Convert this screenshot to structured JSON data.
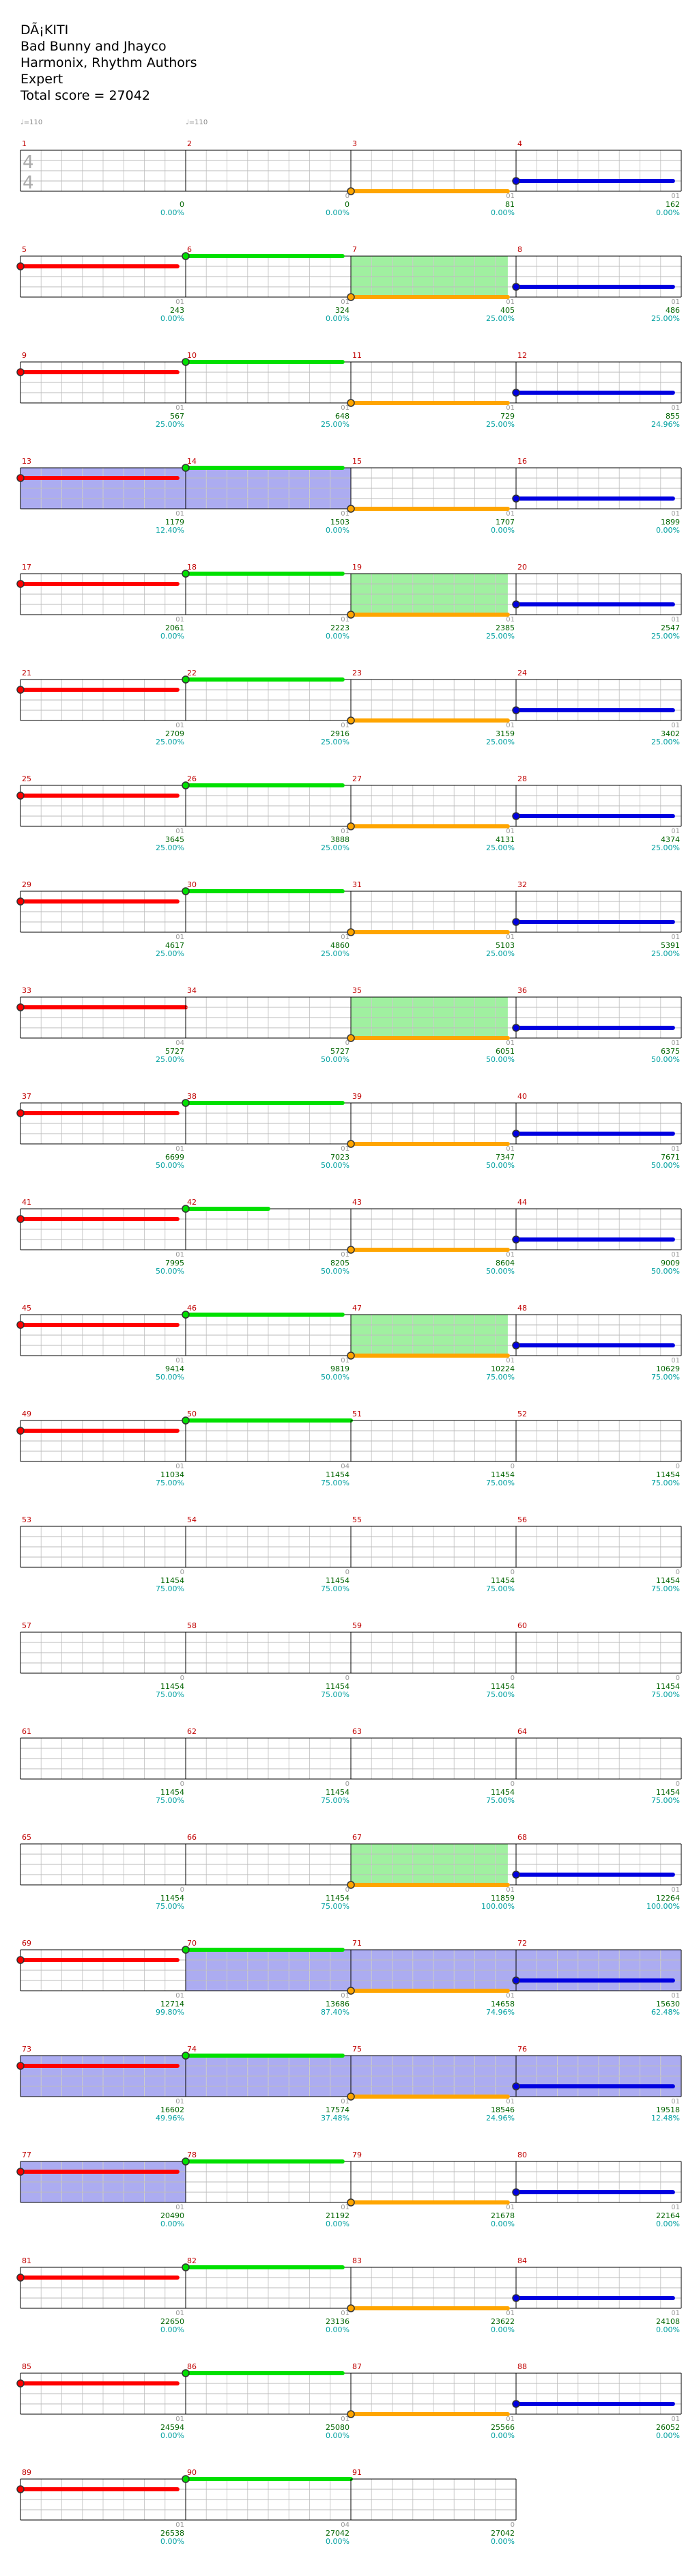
{
  "header": {
    "title": "DÃ¡KITI",
    "artist": "Bad Bunny and Jhayco",
    "authors": "Harmonix, Rhythm Authors",
    "difficulty": "Expert",
    "total_score": "Total score = 27042"
  },
  "tempo_markers": [
    {
      "text": "♩=110",
      "measure": 1
    },
    {
      "text": "♩=110",
      "measure": 2
    }
  ],
  "time_signature": {
    "top": "4",
    "bottom": "4"
  },
  "colors": {
    "red": "#ff0000",
    "green": "#00e000",
    "yellow": "#ffa500",
    "blue": "#0000e0",
    "overdrive": "#a0f0a0",
    "solo": "#a8a8f0",
    "measure_num": "#c00000",
    "score": "#006400",
    "percent": "#00a0a0"
  },
  "measures": [
    {
      "n": "1",
      "score": "0",
      "pct": "0.00%",
      "gems": "",
      "od": false,
      "solo": false
    },
    {
      "n": "2",
      "score": "0",
      "pct": "0.00%",
      "gems": "0",
      "od": false,
      "solo": false
    },
    {
      "n": "3",
      "score": "81",
      "pct": "0.00%",
      "gems": "01",
      "od": false,
      "solo": false
    },
    {
      "n": "4",
      "score": "162",
      "pct": "0.00%",
      "gems": "01",
      "od": false,
      "solo": false
    },
    {
      "n": "5",
      "score": "243",
      "pct": "0.00%",
      "gems": "01",
      "od": false,
      "solo": false
    },
    {
      "n": "6",
      "score": "324",
      "pct": "0.00%",
      "gems": "01",
      "od": false,
      "solo": false
    },
    {
      "n": "7",
      "score": "405",
      "pct": "25.00%",
      "gems": "01",
      "od": true,
      "solo": false
    },
    {
      "n": "8",
      "score": "486",
      "pct": "25.00%",
      "gems": "01",
      "od": false,
      "solo": false
    },
    {
      "n": "9",
      "score": "567",
      "pct": "25.00%",
      "gems": "01",
      "od": false,
      "solo": false
    },
    {
      "n": "10",
      "score": "648",
      "pct": "25.00%",
      "gems": "01",
      "od": false,
      "solo": false
    },
    {
      "n": "11",
      "score": "729",
      "pct": "25.00%",
      "gems": "01",
      "od": false,
      "solo": false
    },
    {
      "n": "12",
      "score": "855",
      "pct": "24.96%",
      "gems": "01",
      "od": false,
      "solo": false
    },
    {
      "n": "13",
      "score": "1179",
      "pct": "12.40%",
      "gems": "01",
      "od": false,
      "solo": true
    },
    {
      "n": "14",
      "score": "1503",
      "pct": "0.00%",
      "gems": "01",
      "od": false,
      "solo": true
    },
    {
      "n": "15",
      "score": "1707",
      "pct": "0.00%",
      "gems": "01",
      "od": false,
      "solo": false
    },
    {
      "n": "16",
      "score": "1899",
      "pct": "0.00%",
      "gems": "01",
      "od": false,
      "solo": false
    },
    {
      "n": "17",
      "score": "2061",
      "pct": "0.00%",
      "gems": "01",
      "od": false,
      "solo": false
    },
    {
      "n": "18",
      "score": "2223",
      "pct": "0.00%",
      "gems": "01",
      "od": false,
      "solo": false
    },
    {
      "n": "19",
      "score": "2385",
      "pct": "25.00%",
      "gems": "01",
      "od": true,
      "solo": false
    },
    {
      "n": "20",
      "score": "2547",
      "pct": "25.00%",
      "gems": "01",
      "od": false,
      "solo": false
    },
    {
      "n": "21",
      "score": "2709",
      "pct": "25.00%",
      "gems": "01",
      "od": false,
      "solo": false
    },
    {
      "n": "22",
      "score": "2916",
      "pct": "25.00%",
      "gems": "01",
      "od": false,
      "solo": false
    },
    {
      "n": "23",
      "score": "3159",
      "pct": "25.00%",
      "gems": "01",
      "od": false,
      "solo": false
    },
    {
      "n": "24",
      "score": "3402",
      "pct": "25.00%",
      "gems": "01",
      "od": false,
      "solo": false
    },
    {
      "n": "25",
      "score": "3645",
      "pct": "25.00%",
      "gems": "01",
      "od": false,
      "solo": false
    },
    {
      "n": "26",
      "score": "3888",
      "pct": "25.00%",
      "gems": "01",
      "od": false,
      "solo": false
    },
    {
      "n": "27",
      "score": "4131",
      "pct": "25.00%",
      "gems": "01",
      "od": false,
      "solo": false
    },
    {
      "n": "28",
      "score": "4374",
      "pct": "25.00%",
      "gems": "01",
      "od": false,
      "solo": false
    },
    {
      "n": "29",
      "score": "4617",
      "pct": "25.00%",
      "gems": "01",
      "od": false,
      "solo": false
    },
    {
      "n": "30",
      "score": "4860",
      "pct": "25.00%",
      "gems": "01",
      "od": false,
      "solo": false
    },
    {
      "n": "31",
      "score": "5103",
      "pct": "25.00%",
      "gems": "01",
      "od": false,
      "solo": false
    },
    {
      "n": "32",
      "score": "5391",
      "pct": "25.00%",
      "gems": "01",
      "od": false,
      "solo": false
    },
    {
      "n": "33",
      "score": "5727",
      "pct": "25.00%",
      "gems": "04",
      "od": false,
      "solo": false
    },
    {
      "n": "34",
      "score": "5727",
      "pct": "50.00%",
      "gems": "0",
      "od": false,
      "solo": false
    },
    {
      "n": "35",
      "score": "6051",
      "pct": "50.00%",
      "gems": "01",
      "od": true,
      "solo": false
    },
    {
      "n": "36",
      "score": "6375",
      "pct": "50.00%",
      "gems": "01",
      "od": false,
      "solo": false
    },
    {
      "n": "37",
      "score": "6699",
      "pct": "50.00%",
      "gems": "01",
      "od": false,
      "solo": false
    },
    {
      "n": "38",
      "score": "7023",
      "pct": "50.00%",
      "gems": "01",
      "od": false,
      "solo": false
    },
    {
      "n": "39",
      "score": "7347",
      "pct": "50.00%",
      "gems": "01",
      "od": false,
      "solo": false
    },
    {
      "n": "40",
      "score": "7671",
      "pct": "50.00%",
      "gems": "01",
      "od": false,
      "solo": false
    },
    {
      "n": "41",
      "score": "7995",
      "pct": "50.00%",
      "gems": "01",
      "od": false,
      "solo": false
    },
    {
      "n": "42",
      "score": "8205",
      "pct": "50.00%",
      "gems": "01",
      "od": false,
      "solo": false
    },
    {
      "n": "43",
      "score": "8604",
      "pct": "50.00%",
      "gems": "01",
      "od": false,
      "solo": false
    },
    {
      "n": "44",
      "score": "9009",
      "pct": "50.00%",
      "gems": "01",
      "od": false,
      "solo": false
    },
    {
      "n": "45",
      "score": "9414",
      "pct": "50.00%",
      "gems": "01",
      "od": false,
      "solo": false
    },
    {
      "n": "46",
      "score": "9819",
      "pct": "50.00%",
      "gems": "01",
      "od": false,
      "solo": false
    },
    {
      "n": "47",
      "score": "10224",
      "pct": "75.00%",
      "gems": "01",
      "od": true,
      "solo": false
    },
    {
      "n": "48",
      "score": "10629",
      "pct": "75.00%",
      "gems": "01",
      "od": false,
      "solo": false
    },
    {
      "n": "49",
      "score": "11034",
      "pct": "75.00%",
      "gems": "01",
      "od": false,
      "solo": false
    },
    {
      "n": "50",
      "score": "11454",
      "pct": "75.00%",
      "gems": "04",
      "od": false,
      "solo": false
    },
    {
      "n": "51",
      "score": "11454",
      "pct": "75.00%",
      "gems": "0",
      "od": false,
      "solo": false
    },
    {
      "n": "52",
      "score": "11454",
      "pct": "75.00%",
      "gems": "0",
      "od": false,
      "solo": false
    },
    {
      "n": "53",
      "score": "11454",
      "pct": "75.00%",
      "gems": "0",
      "od": false,
      "solo": false
    },
    {
      "n": "54",
      "score": "11454",
      "pct": "75.00%",
      "gems": "0",
      "od": false,
      "solo": false
    },
    {
      "n": "55",
      "score": "11454",
      "pct": "75.00%",
      "gems": "0",
      "od": false,
      "solo": false
    },
    {
      "n": "56",
      "score": "11454",
      "pct": "75.00%",
      "gems": "0",
      "od": false,
      "solo": false
    },
    {
      "n": "57",
      "score": "11454",
      "pct": "75.00%",
      "gems": "0",
      "od": false,
      "solo": false
    },
    {
      "n": "58",
      "score": "11454",
      "pct": "75.00%",
      "gems": "0",
      "od": false,
      "solo": false
    },
    {
      "n": "59",
      "score": "11454",
      "pct": "75.00%",
      "gems": "0",
      "od": false,
      "solo": false
    },
    {
      "n": "60",
      "score": "11454",
      "pct": "75.00%",
      "gems": "0",
      "od": false,
      "solo": false
    },
    {
      "n": "61",
      "score": "11454",
      "pct": "75.00%",
      "gems": "0",
      "od": false,
      "solo": false
    },
    {
      "n": "62",
      "score": "11454",
      "pct": "75.00%",
      "gems": "0",
      "od": false,
      "solo": false
    },
    {
      "n": "63",
      "score": "11454",
      "pct": "75.00%",
      "gems": "0",
      "od": false,
      "solo": false
    },
    {
      "n": "64",
      "score": "11454",
      "pct": "75.00%",
      "gems": "0",
      "od": false,
      "solo": false
    },
    {
      "n": "65",
      "score": "11454",
      "pct": "75.00%",
      "gems": "0",
      "od": false,
      "solo": false
    },
    {
      "n": "66",
      "score": "11454",
      "pct": "75.00%",
      "gems": "0",
      "od": false,
      "solo": false
    },
    {
      "n": "67",
      "score": "11859",
      "pct": "100.00%",
      "gems": "01",
      "od": true,
      "solo": false
    },
    {
      "n": "68",
      "score": "12264",
      "pct": "100.00%",
      "gems": "01",
      "od": false,
      "solo": false
    },
    {
      "n": "69",
      "score": "12714",
      "pct": "99.80%",
      "gems": "01",
      "od": false,
      "solo": false
    },
    {
      "n": "70",
      "score": "13686",
      "pct": "87.40%",
      "gems": "01",
      "od": false,
      "solo": true
    },
    {
      "n": "71",
      "score": "14658",
      "pct": "74.96%",
      "gems": "01",
      "od": false,
      "solo": true
    },
    {
      "n": "72",
      "score": "15630",
      "pct": "62.48%",
      "gems": "01",
      "od": false,
      "solo": true
    },
    {
      "n": "73",
      "score": "16602",
      "pct": "49.96%",
      "gems": "01",
      "od": false,
      "solo": true
    },
    {
      "n": "74",
      "score": "17574",
      "pct": "37.48%",
      "gems": "01",
      "od": false,
      "solo": true
    },
    {
      "n": "75",
      "score": "18546",
      "pct": "24.96%",
      "gems": "01",
      "od": false,
      "solo": true
    },
    {
      "n": "76",
      "score": "19518",
      "pct": "12.48%",
      "gems": "01",
      "od": false,
      "solo": true
    },
    {
      "n": "77",
      "score": "20490",
      "pct": "0.00%",
      "gems": "01",
      "od": false,
      "solo": true
    },
    {
      "n": "78",
      "score": "21192",
      "pct": "0.00%",
      "gems": "01",
      "od": false,
      "solo": false
    },
    {
      "n": "79",
      "score": "21678",
      "pct": "0.00%",
      "gems": "01",
      "od": false,
      "solo": false
    },
    {
      "n": "80",
      "score": "22164",
      "pct": "0.00%",
      "gems": "01",
      "od": false,
      "solo": false
    },
    {
      "n": "81",
      "score": "22650",
      "pct": "0.00%",
      "gems": "01",
      "od": false,
      "solo": false
    },
    {
      "n": "82",
      "score": "23136",
      "pct": "0.00%",
      "gems": "01",
      "od": false,
      "solo": false
    },
    {
      "n": "83",
      "score": "23622",
      "pct": "0.00%",
      "gems": "01",
      "od": false,
      "solo": false
    },
    {
      "n": "84",
      "score": "24108",
      "pct": "0.00%",
      "gems": "01",
      "od": false,
      "solo": false
    },
    {
      "n": "85",
      "score": "24594",
      "pct": "0.00%",
      "gems": "01",
      "od": false,
      "solo": false
    },
    {
      "n": "86",
      "score": "25080",
      "pct": "0.00%",
      "gems": "01",
      "od": false,
      "solo": false
    },
    {
      "n": "87",
      "score": "25566",
      "pct": "0.00%",
      "gems": "01",
      "od": false,
      "solo": false
    },
    {
      "n": "88",
      "score": "26052",
      "pct": "0.00%",
      "gems": "01",
      "od": false,
      "solo": false
    },
    {
      "n": "89",
      "score": "26538",
      "pct": "0.00%",
      "gems": "01",
      "od": false,
      "solo": false
    },
    {
      "n": "90",
      "score": "27042",
      "pct": "0.00%",
      "gems": "04",
      "od": false,
      "solo": false
    },
    {
      "n": "91",
      "score": "27042",
      "pct": "0.00%",
      "gems": "0",
      "od": false,
      "solo": false
    }
  ],
  "sustains": [
    {
      "m": 3,
      "color": "yellow",
      "start": 0,
      "len": 0.95
    },
    {
      "m": 4,
      "color": "blue",
      "start": 0,
      "len": 0.95
    },
    {
      "m": 5,
      "color": "red",
      "start": 0,
      "len": 0.95
    },
    {
      "m": 6,
      "color": "green",
      "start": 0,
      "len": 0.95
    },
    {
      "m": 7,
      "color": "yellow",
      "start": 0,
      "len": 0.95
    },
    {
      "m": 8,
      "color": "blue",
      "start": 0,
      "len": 0.95
    },
    {
      "m": 9,
      "color": "red",
      "start": 0,
      "len": 0.95
    },
    {
      "m": 10,
      "color": "green",
      "start": 0,
      "len": 0.95
    },
    {
      "m": 11,
      "color": "yellow",
      "start": 0,
      "len": 0.95
    },
    {
      "m": 12,
      "color": "blue",
      "start": 0,
      "len": 0.95
    },
    {
      "m": 13,
      "color": "red",
      "start": 0,
      "len": 0.95
    },
    {
      "m": 14,
      "color": "green",
      "start": 0,
      "len": 0.95
    },
    {
      "m": 15,
      "color": "yellow",
      "start": 0,
      "len": 0.95
    },
    {
      "m": 16,
      "color": "blue",
      "start": 0,
      "len": 0.95
    },
    {
      "m": 17,
      "color": "red",
      "start": 0,
      "len": 0.95
    },
    {
      "m": 18,
      "color": "green",
      "start": 0,
      "len": 0.95
    },
    {
      "m": 19,
      "color": "yellow",
      "start": 0,
      "len": 0.95
    },
    {
      "m": 20,
      "color": "blue",
      "start": 0,
      "len": 0.95
    },
    {
      "m": 21,
      "color": "red",
      "start": 0,
      "len": 0.95
    },
    {
      "m": 22,
      "color": "green",
      "start": 0,
      "len": 0.95
    },
    {
      "m": 23,
      "color": "yellow",
      "start": 0,
      "len": 0.95
    },
    {
      "m": 24,
      "color": "blue",
      "start": 0,
      "len": 0.95
    },
    {
      "m": 25,
      "color": "red",
      "start": 0,
      "len": 0.95
    },
    {
      "m": 26,
      "color": "green",
      "start": 0,
      "len": 0.95
    },
    {
      "m": 27,
      "color": "yellow",
      "start": 0,
      "len": 0.95
    },
    {
      "m": 28,
      "color": "blue",
      "start": 0,
      "len": 0.95
    },
    {
      "m": 29,
      "color": "red",
      "start": 0,
      "len": 0.95
    },
    {
      "m": 30,
      "color": "green",
      "start": 0,
      "len": 0.95
    },
    {
      "m": 31,
      "color": "yellow",
      "start": 0,
      "len": 0.95
    },
    {
      "m": 32,
      "color": "blue",
      "start": 0,
      "len": 0.95
    },
    {
      "m": 33,
      "color": "red",
      "start": 0,
      "len": 1.0
    },
    {
      "m": 35,
      "color": "yellow",
      "start": 0,
      "len": 0.95
    },
    {
      "m": 36,
      "color": "blue",
      "start": 0,
      "len": 0.95
    },
    {
      "m": 37,
      "color": "red",
      "start": 0,
      "len": 0.95
    },
    {
      "m": 38,
      "color": "green",
      "start": 0,
      "len": 0.95
    },
    {
      "m": 39,
      "color": "yellow",
      "start": 0,
      "len": 0.95
    },
    {
      "m": 40,
      "color": "blue",
      "start": 0,
      "len": 0.95
    },
    {
      "m": 41,
      "color": "red",
      "start": 0,
      "len": 0.95
    },
    {
      "m": 42,
      "color": "green",
      "start": 0,
      "len": 0.5
    },
    {
      "m": 43,
      "color": "yellow",
      "start": 0,
      "len": 0.95
    },
    {
      "m": 44,
      "color": "blue",
      "start": 0,
      "len": 0.95
    },
    {
      "m": 45,
      "color": "red",
      "start": 0,
      "len": 0.95
    },
    {
      "m": 46,
      "color": "green",
      "start": 0,
      "len": 0.95
    },
    {
      "m": 47,
      "color": "yellow",
      "start": 0,
      "len": 0.95
    },
    {
      "m": 48,
      "color": "blue",
      "start": 0,
      "len": 0.95
    },
    {
      "m": 49,
      "color": "red",
      "start": 0,
      "len": 0.95
    },
    {
      "m": 50,
      "color": "green",
      "start": 0,
      "len": 1.0
    },
    {
      "m": 67,
      "color": "yellow",
      "start": 0,
      "len": 0.95
    },
    {
      "m": 68,
      "color": "blue",
      "start": 0,
      "len": 0.95
    },
    {
      "m": 69,
      "color": "red",
      "start": 0,
      "len": 0.95
    },
    {
      "m": 70,
      "color": "green",
      "start": 0,
      "len": 0.95
    },
    {
      "m": 71,
      "color": "yellow",
      "start": 0,
      "len": 0.95
    },
    {
      "m": 72,
      "color": "blue",
      "start": 0,
      "len": 0.95
    },
    {
      "m": 73,
      "color": "red",
      "start": 0,
      "len": 0.95
    },
    {
      "m": 74,
      "color": "green",
      "start": 0,
      "len": 0.95
    },
    {
      "m": 75,
      "color": "yellow",
      "start": 0,
      "len": 0.95
    },
    {
      "m": 76,
      "color": "blue",
      "start": 0,
      "len": 0.95
    },
    {
      "m": 77,
      "color": "red",
      "start": 0,
      "len": 0.95
    },
    {
      "m": 78,
      "color": "green",
      "start": 0,
      "len": 0.95
    },
    {
      "m": 79,
      "color": "yellow",
      "start": 0,
      "len": 0.95
    },
    {
      "m": 80,
      "color": "blue",
      "start": 0,
      "len": 0.95
    },
    {
      "m": 81,
      "color": "red",
      "start": 0,
      "len": 0.95
    },
    {
      "m": 82,
      "color": "green",
      "start": 0,
      "len": 0.95
    },
    {
      "m": 83,
      "color": "yellow",
      "start": 0,
      "len": 0.95
    },
    {
      "m": 84,
      "color": "blue",
      "start": 0,
      "len": 0.95
    },
    {
      "m": 85,
      "color": "red",
      "start": 0,
      "len": 0.95
    },
    {
      "m": 86,
      "color": "green",
      "start": 0,
      "len": 0.95
    },
    {
      "m": 87,
      "color": "yellow",
      "start": 0,
      "len": 0.95
    },
    {
      "m": 88,
      "color": "blue",
      "start": 0,
      "len": 0.95
    },
    {
      "m": 89,
      "color": "red",
      "start": 0,
      "len": 0.95
    },
    {
      "m": 90,
      "color": "green",
      "start": 0,
      "len": 1.0
    }
  ]
}
